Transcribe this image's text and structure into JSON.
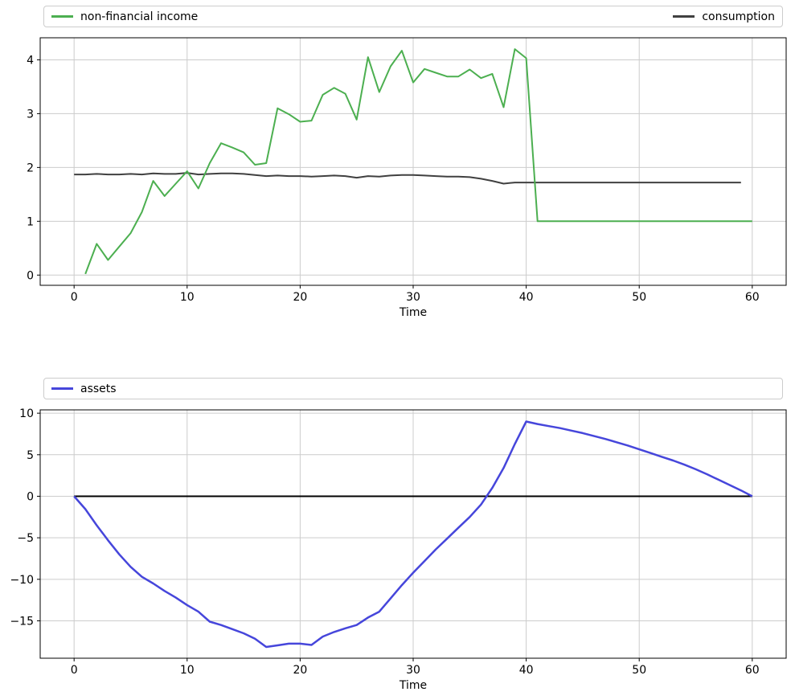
{
  "figure": {
    "background": "#ffffff"
  },
  "chart_data": [
    {
      "type": "line",
      "title": "",
      "xlabel": "Time",
      "ylabel": "",
      "xlim": [
        -3,
        63
      ],
      "ylim": [
        -0.19,
        4.41
      ],
      "xticks": [
        0,
        10,
        20,
        30,
        40,
        50,
        60
      ],
      "yticks": [
        0,
        1,
        2,
        3,
        4
      ],
      "grid": true,
      "grid_color": "#cccccc",
      "spine_color": "#000000",
      "legend": {
        "position": "above-axes",
        "mode": "expand",
        "labels": [
          "non-financial income",
          "consumption"
        ]
      },
      "series": [
        {
          "name": "consumption",
          "color": "#404040",
          "line_width": 2,
          "x": [
            0,
            1,
            2,
            3,
            4,
            5,
            6,
            7,
            8,
            9,
            10,
            11,
            12,
            13,
            14,
            15,
            16,
            17,
            18,
            19,
            20,
            21,
            22,
            23,
            24,
            25,
            26,
            27,
            28,
            29,
            30,
            31,
            32,
            33,
            34,
            35,
            36,
            37,
            38,
            39,
            40,
            41,
            42,
            43,
            44,
            45,
            46,
            47,
            48,
            49,
            50,
            51,
            52,
            53,
            54,
            55,
            56,
            57,
            58,
            59
          ],
          "y": [
            1.87,
            1.87,
            1.88,
            1.87,
            1.87,
            1.88,
            1.87,
            1.89,
            1.88,
            1.88,
            1.9,
            1.87,
            1.88,
            1.89,
            1.89,
            1.88,
            1.86,
            1.84,
            1.85,
            1.84,
            1.84,
            1.83,
            1.84,
            1.85,
            1.84,
            1.81,
            1.84,
            1.83,
            1.85,
            1.86,
            1.86,
            1.85,
            1.84,
            1.83,
            1.83,
            1.82,
            1.79,
            1.75,
            1.7,
            1.72,
            1.72,
            1.72,
            1.72,
            1.72,
            1.72,
            1.72,
            1.72,
            1.72,
            1.72,
            1.72,
            1.72,
            1.72,
            1.72,
            1.72,
            1.72,
            1.72,
            1.72,
            1.72,
            1.72,
            1.72
          ]
        },
        {
          "name": "non-financial income",
          "color": "#4caf50",
          "line_width": 2,
          "x": [
            1,
            2,
            3,
            4,
            5,
            6,
            7,
            8,
            9,
            10,
            11,
            12,
            13,
            14,
            15,
            16,
            17,
            18,
            19,
            20,
            21,
            22,
            23,
            24,
            25,
            26,
            27,
            28,
            29,
            30,
            31,
            32,
            33,
            34,
            35,
            36,
            37,
            38,
            39,
            40,
            41,
            42,
            43,
            44,
            45,
            46,
            47,
            48,
            49,
            50,
            51,
            52,
            53,
            54,
            55,
            56,
            57,
            58,
            59,
            60
          ],
          "y": [
            0.02,
            0.58,
            0.28,
            0.53,
            0.78,
            1.17,
            1.75,
            1.47,
            1.7,
            1.93,
            1.61,
            2.08,
            2.45,
            2.37,
            2.28,
            2.05,
            2.08,
            3.1,
            2.99,
            2.85,
            2.87,
            3.35,
            3.48,
            3.37,
            2.89,
            4.05,
            3.4,
            3.88,
            4.17,
            3.58,
            3.83,
            3.76,
            3.69,
            3.69,
            3.82,
            3.66,
            3.74,
            3.12,
            4.2,
            4.03,
            1.0,
            1.0,
            1.0,
            1.0,
            1.0,
            1.0,
            1.0,
            1.0,
            1.0,
            1.0,
            1.0,
            1.0,
            1.0,
            1.0,
            1.0,
            1.0,
            1.0,
            1.0,
            1.0,
            1.0
          ]
        }
      ]
    },
    {
      "type": "line",
      "title": "",
      "xlabel": "Time",
      "ylabel": "",
      "xlim": [
        -3,
        63
      ],
      "ylim": [
        -19.5,
        10.4
      ],
      "xticks": [
        0,
        10,
        20,
        30,
        40,
        50,
        60
      ],
      "yticks": [
        10,
        5,
        0,
        -5,
        -10,
        -15
      ],
      "grid": true,
      "grid_color": "#cccccc",
      "spine_color": "#000000",
      "legend": {
        "position": "above-axes",
        "mode": "left",
        "labels": [
          "assets"
        ]
      },
      "series": [
        {
          "name": "zero line",
          "color": "#000000",
          "line_width": 2,
          "in_legend": false,
          "x": [
            0,
            60
          ],
          "y": [
            0,
            0
          ]
        },
        {
          "name": "assets",
          "color": "#4646db",
          "line_width": 2.5,
          "x": [
            0,
            1,
            2,
            3,
            4,
            5,
            6,
            7,
            8,
            9,
            10,
            11,
            12,
            13,
            14,
            15,
            16,
            17,
            18,
            19,
            20,
            21,
            22,
            23,
            24,
            25,
            26,
            27,
            28,
            29,
            30,
            31,
            32,
            33,
            34,
            35,
            36,
            37,
            38,
            39,
            40,
            41,
            42,
            43,
            44,
            45,
            46,
            47,
            48,
            49,
            50,
            51,
            52,
            53,
            54,
            55,
            56,
            57,
            58,
            59,
            60
          ],
          "y": [
            0.0,
            -1.55,
            -3.5,
            -5.3,
            -7.0,
            -8.5,
            -9.7,
            -10.5,
            -11.4,
            -12.2,
            -13.1,
            -13.9,
            -15.1,
            -15.5,
            -16.0,
            -16.5,
            -17.15,
            -18.15,
            -17.95,
            -17.75,
            -17.75,
            -17.9,
            -16.9,
            -16.35,
            -15.9,
            -15.5,
            -14.6,
            -13.9,
            -12.3,
            -10.7,
            -9.2,
            -7.8,
            -6.4,
            -5.1,
            -3.8,
            -2.5,
            -1.0,
            1.0,
            3.4,
            6.3,
            9.0,
            8.7,
            8.45,
            8.2,
            7.9,
            7.6,
            7.25,
            6.9,
            6.5,
            6.1,
            5.65,
            5.2,
            4.75,
            4.3,
            3.8,
            3.25,
            2.65,
            2.0,
            1.35,
            0.7,
            0.0
          ]
        }
      ]
    }
  ]
}
